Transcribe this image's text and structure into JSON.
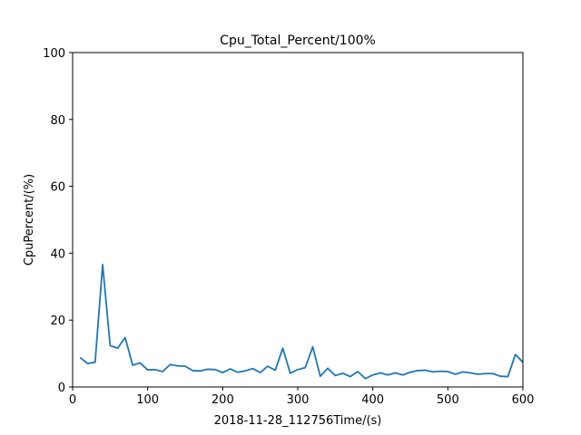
{
  "chart_data": {
    "type": "line",
    "title": "Cpu_Total_Percent/100%",
    "xlabel": "2018-11-28_112756Time/(s)",
    "ylabel": "CpuPercent/(%)",
    "xlim": [
      0,
      600
    ],
    "ylim": [
      0,
      100
    ],
    "xticks": [
      0,
      100,
      200,
      300,
      400,
      500,
      600
    ],
    "yticks": [
      0,
      20,
      40,
      60,
      80,
      100
    ],
    "grid": false,
    "series": [
      {
        "color": "#1f77b4",
        "x": [
          10,
          20,
          30,
          40,
          50,
          60,
          70,
          80,
          90,
          100,
          110,
          120,
          130,
          140,
          150,
          160,
          170,
          180,
          190,
          200,
          210,
          220,
          230,
          240,
          250,
          260,
          270,
          280,
          290,
          300,
          310,
          320,
          330,
          340,
          350,
          360,
          370,
          380,
          390,
          400,
          410,
          420,
          430,
          440,
          450,
          460,
          470,
          480,
          490,
          500,
          510,
          520,
          530,
          540,
          550,
          560,
          570,
          580,
          590,
          600
        ],
        "y": [
          8.8,
          7.0,
          7.4,
          36.6,
          12.4,
          11.6,
          14.8,
          6.5,
          7.2,
          5.1,
          5.2,
          4.6,
          6.7,
          6.3,
          6.2,
          4.9,
          4.8,
          5.3,
          5.2,
          4.3,
          5.4,
          4.4,
          4.8,
          5.5,
          4.3,
          6.2,
          5.0,
          11.6,
          4.1,
          5.2,
          5.8,
          12.0,
          3.2,
          5.6,
          3.4,
          4.1,
          3.1,
          4.6,
          2.5,
          3.6,
          4.2,
          3.6,
          4.2,
          3.6,
          4.4,
          4.9,
          5.0,
          4.5,
          4.7,
          4.6,
          3.8,
          4.5,
          4.2,
          3.8,
          4.0,
          4.0,
          3.2,
          3.1,
          9.7,
          7.4
        ]
      }
    ]
  }
}
